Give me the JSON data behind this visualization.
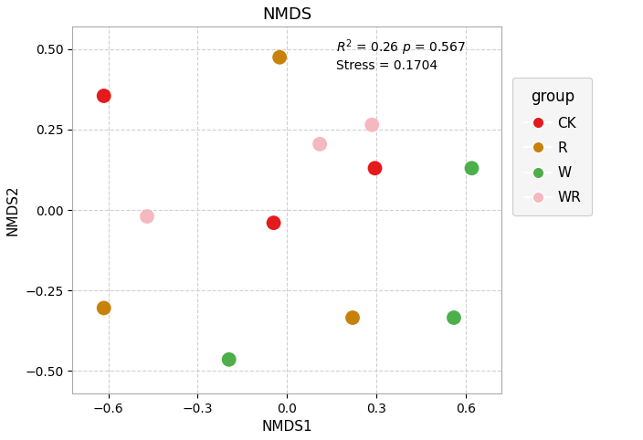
{
  "title": "NMDS",
  "xlabel": "NMDS1",
  "ylabel": "NMDS2",
  "xlim": [
    -0.72,
    0.72
  ],
  "ylim": [
    -0.57,
    0.57
  ],
  "xticks": [
    -0.6,
    -0.3,
    0.0,
    0.3,
    0.6
  ],
  "yticks": [
    -0.5,
    -0.25,
    0.0,
    0.25,
    0.5
  ],
  "annotation_line1": "R² = 0.26 ",
  "annotation_p": "p",
  "annotation_line1_end": " = 0.567",
  "annotation_line2": "Stress = 0.1704",
  "groups": {
    "CK": {
      "color": "#E41A1C",
      "points": [
        [
          -0.615,
          0.355
        ],
        [
          -0.045,
          -0.04
        ],
        [
          0.295,
          0.13
        ]
      ]
    },
    "R": {
      "color": "#C8820A",
      "points": [
        [
          -0.025,
          0.475
        ],
        [
          -0.615,
          -0.305
        ],
        [
          0.22,
          -0.335
        ]
      ]
    },
    "W": {
      "color": "#4DAF4A",
      "points": [
        [
          -0.195,
          -0.465
        ],
        [
          0.56,
          -0.335
        ],
        [
          0.62,
          0.13
        ]
      ]
    },
    "WR": {
      "color": "#F4B8C1",
      "points": [
        [
          -0.47,
          -0.02
        ],
        [
          0.11,
          0.205
        ],
        [
          0.285,
          0.265
        ]
      ]
    }
  },
  "marker_size": 130,
  "legend_title": "group",
  "background_color": "#ffffff",
  "grid_color": "#d0d0d0",
  "title_fontsize": 13,
  "label_fontsize": 11,
  "tick_fontsize": 10,
  "legend_fontsize": 11,
  "legend_title_fontsize": 12
}
